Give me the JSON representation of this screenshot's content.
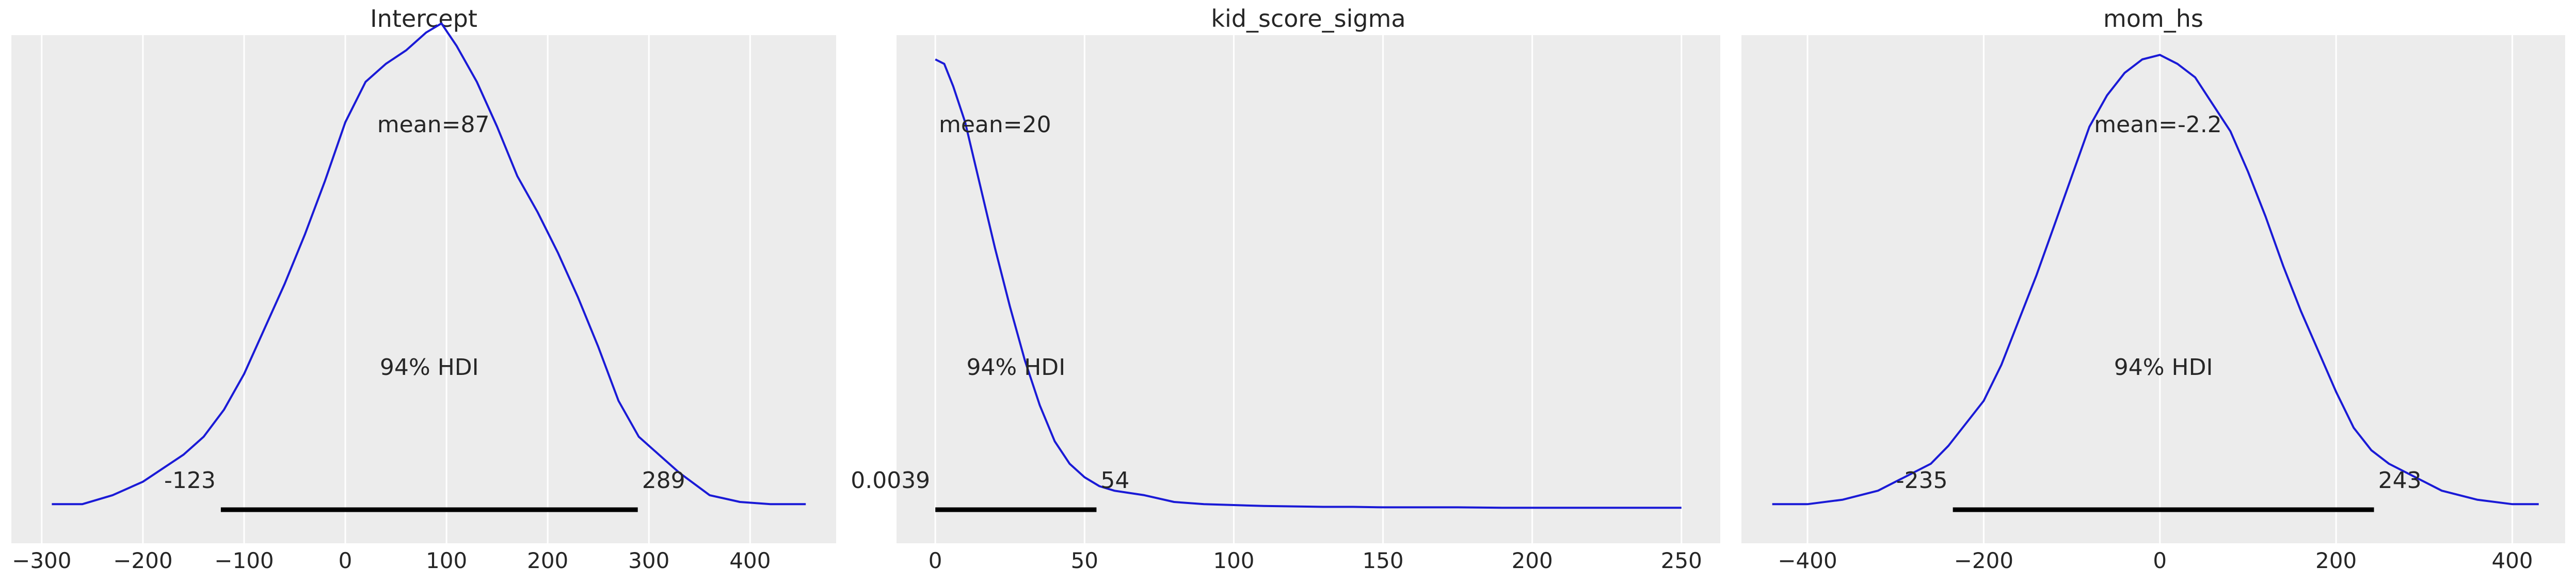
{
  "figure": {
    "background": "#ffffff",
    "plot_background": "#ececec",
    "line_color": "#1a1ad6",
    "hdi_color": "#000000"
  },
  "chart_data": [
    {
      "type": "line",
      "title": "Intercept",
      "xlabel": "",
      "ylabel": "",
      "xlim": [
        -330,
        485
      ],
      "xticks": [
        -300,
        -200,
        -100,
        0,
        100,
        200,
        300,
        400
      ],
      "xtick_labels": [
        "−300",
        "−200",
        "−100",
        "0",
        "100",
        "200",
        "300",
        "400"
      ],
      "grid": true,
      "mean_label": "mean=87",
      "hdi_text": "94% HDI",
      "hdi": [
        -123,
        289
      ],
      "hdi_low_label": "-123",
      "hdi_high_label": "289",
      "density_max_frac": 1.0,
      "series": [
        {
          "x": [
            -290,
            -260,
            -230,
            -200,
            -180,
            -160,
            -140,
            -120,
            -100,
            -80,
            -60,
            -40,
            -20,
            0,
            20,
            40,
            60,
            80,
            95,
            110,
            130,
            150,
            170,
            190,
            210,
            230,
            250,
            270,
            290,
            310,
            330,
            360,
            390,
            420,
            455
          ],
          "y": [
            0.01,
            0.01,
            0.03,
            0.06,
            0.09,
            0.12,
            0.16,
            0.22,
            0.3,
            0.4,
            0.5,
            0.61,
            0.73,
            0.86,
            0.95,
            0.99,
            1.02,
            1.06,
            1.08,
            1.03,
            0.95,
            0.85,
            0.74,
            0.66,
            0.57,
            0.47,
            0.36,
            0.24,
            0.16,
            0.12,
            0.08,
            0.03,
            0.015,
            0.01,
            0.01
          ]
        }
      ]
    },
    {
      "type": "line",
      "title": "kid_score_sigma",
      "xlabel": "",
      "ylabel": "",
      "xlim": [
        -13,
        263
      ],
      "xticks": [
        0,
        50,
        100,
        150,
        200,
        250
      ],
      "xtick_labels": [
        "0",
        "50",
        "100",
        "150",
        "200",
        "250"
      ],
      "grid": true,
      "mean_label": "mean=20",
      "hdi_text": "94% HDI",
      "hdi": [
        0.0039,
        54
      ],
      "hdi_low_label": "0.0039",
      "hdi_high_label": "54",
      "series": [
        {
          "x": [
            0,
            3,
            6,
            10,
            15,
            20,
            25,
            30,
            35,
            40,
            45,
            50,
            55,
            60,
            70,
            80,
            90,
            100,
            110,
            120,
            130,
            140,
            150,
            160,
            175,
            190,
            200,
            215,
            230,
            250
          ],
          "y": [
            1.0,
            0.99,
            0.94,
            0.86,
            0.72,
            0.58,
            0.45,
            0.33,
            0.23,
            0.15,
            0.1,
            0.07,
            0.05,
            0.04,
            0.03,
            0.015,
            0.01,
            0.008,
            0.006,
            0.005,
            0.004,
            0.004,
            0.003,
            0.003,
            0.003,
            0.002,
            0.002,
            0.002,
            0.002,
            0.002
          ]
        }
      ]
    },
    {
      "type": "line",
      "title": "mom_hs",
      "xlabel": "",
      "ylabel": "",
      "xlim": [
        -475,
        460
      ],
      "xticks": [
        -400,
        -200,
        0,
        200,
        400
      ],
      "xtick_labels": [
        "−400",
        "−200",
        "0",
        "200",
        "400"
      ],
      "grid": true,
      "mean_label": "mean=-2.2",
      "hdi_text": "94% HDI",
      "hdi": [
        -235,
        243
      ],
      "hdi_low_label": "-235",
      "hdi_high_label": "243",
      "series": [
        {
          "x": [
            -440,
            -400,
            -360,
            -320,
            -290,
            -260,
            -240,
            -220,
            -200,
            -180,
            -160,
            -140,
            -120,
            -100,
            -80,
            -60,
            -40,
            -20,
            0,
            20,
            40,
            60,
            80,
            100,
            120,
            140,
            160,
            180,
            200,
            220,
            240,
            260,
            290,
            320,
            360,
            400,
            430
          ],
          "y": [
            0.01,
            0.01,
            0.02,
            0.04,
            0.07,
            0.1,
            0.14,
            0.19,
            0.24,
            0.32,
            0.42,
            0.52,
            0.63,
            0.74,
            0.85,
            0.92,
            0.97,
            1.0,
            1.01,
            0.99,
            0.96,
            0.9,
            0.84,
            0.75,
            0.65,
            0.54,
            0.44,
            0.35,
            0.26,
            0.18,
            0.13,
            0.1,
            0.07,
            0.04,
            0.02,
            0.01,
            0.01
          ]
        }
      ]
    }
  ]
}
